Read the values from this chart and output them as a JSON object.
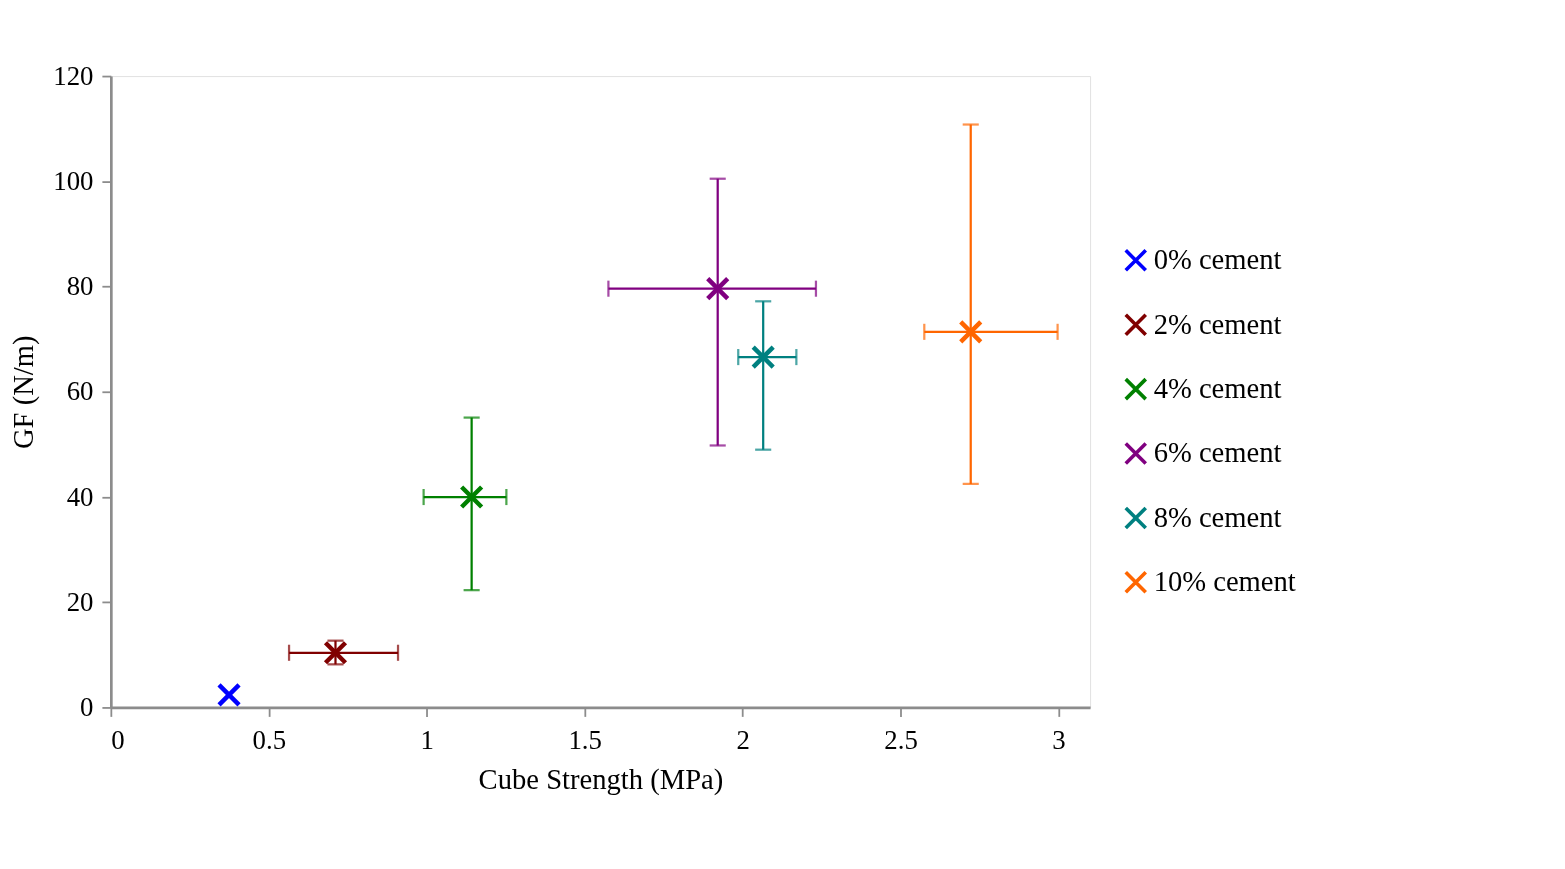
{
  "chart_data": {
    "type": "scatter",
    "xlabel": "Cube Strength (MPa)",
    "ylabel": "GF (N/m)",
    "xlim": [
      0,
      3.1
    ],
    "xticks": [
      0,
      0.5,
      1,
      1.5,
      2,
      2.5,
      3
    ],
    "ylim": [
      0,
      120
    ],
    "yticks": [
      0,
      20,
      40,
      60,
      80,
      100,
      120
    ],
    "grid": false,
    "legend": "right",
    "marker": "cross",
    "series": [
      {
        "name": "0% cement",
        "color": "#0000ff",
        "x": [
          0.374
        ],
        "values": [
          2.4
        ]
      },
      {
        "name": "2% cement",
        "color": "#800000",
        "x": [
          0.711
        ],
        "values": [
          10.4
        ],
        "errors": [
          [
            8.2,
            12.7
          ]
        ],
        "xerrors": [
          [
            0.564,
            0.909
          ]
        ]
      },
      {
        "name": "4% cement",
        "color": "#008000",
        "x": [
          1.142
        ],
        "values": [
          40.0
        ],
        "errors": [
          [
            22.3,
            55.1
          ]
        ],
        "xerrors": [
          [
            0.99,
            1.252
          ]
        ]
      },
      {
        "name": "6% cement",
        "color": "#800080",
        "x": [
          1.921
        ],
        "values": [
          79.6
        ],
        "errors": [
          [
            49.8,
            100.5
          ]
        ],
        "xerrors": [
          [
            1.575,
            2.232
          ]
        ]
      },
      {
        "name": "8% cement",
        "color": "#008080",
        "x": [
          2.065
        ],
        "values": [
          66.6
        ],
        "errors": [
          [
            49.0,
            77.2
          ]
        ],
        "xerrors": [
          [
            1.986,
            2.17
          ]
        ]
      },
      {
        "name": "10% cement",
        "color": "#ff6600",
        "x": [
          2.722
        ],
        "values": [
          71.4
        ],
        "errors": [
          [
            42.5,
            110.8
          ]
        ],
        "xerrors": [
          [
            2.575,
            2.997
          ]
        ]
      }
    ]
  }
}
